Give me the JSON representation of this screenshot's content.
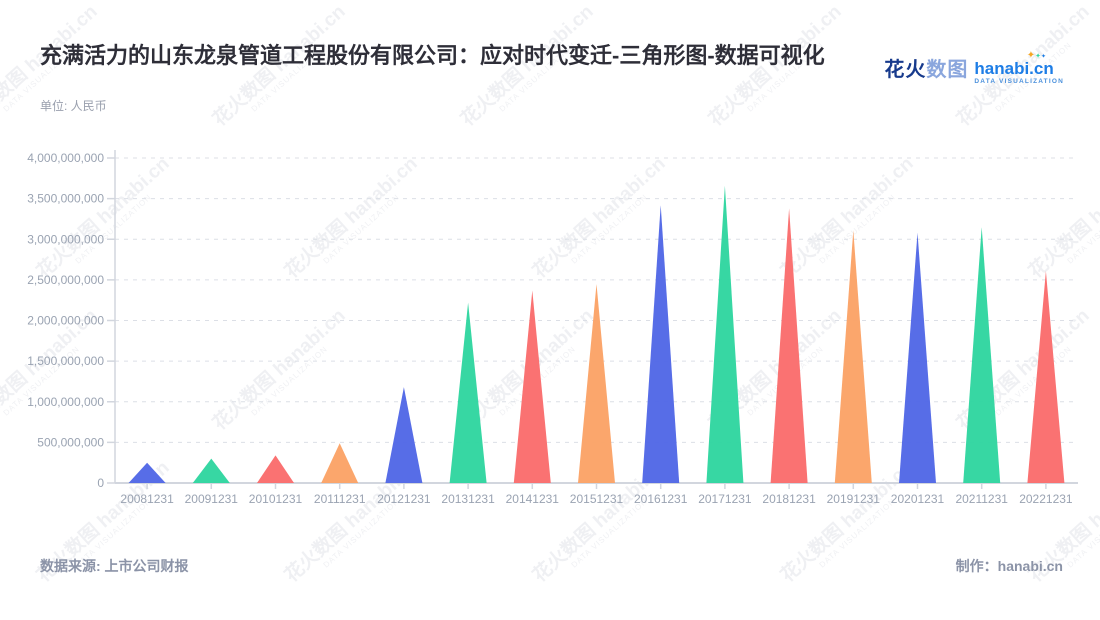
{
  "header": {
    "title": "充满活力的山东龙泉管道工程股份有限公司：应对时代变迁-三角形图-数据可视化",
    "logo": {
      "brand_cn_1": "花火",
      "brand_cn_2": "数图",
      "brand_en": "hanabi.cn",
      "tagline": "DATA VISUALIZATION"
    }
  },
  "unit_label": "单位: 人民币",
  "footer": {
    "source": "数据来源: 上市公司财报",
    "credit": "制作：hanabi.cn"
  },
  "watermark": {
    "text": "花火数图 hanabi.cn",
    "subtext": "DATA VISUALIZATION"
  },
  "colors": {
    "palette": [
      "#5268e6",
      "#31d6a0",
      "#fa6d6d",
      "#fba367"
    ],
    "axis_line": "#d2d6de",
    "grid_line": "#dcdfe6",
    "tick_label": "#9aa3b2"
  },
  "chart_data": {
    "type": "area",
    "shape": "triangle",
    "title": "充满活力的山东龙泉管道工程股份有限公司：应对时代变迁-三角形图-数据可视化",
    "xlabel": "",
    "ylabel": "单位: 人民币",
    "legend_position": "none",
    "grid": true,
    "ylim": [
      0,
      4000000000
    ],
    "ytick_step": 500000000,
    "categories": [
      "20081231",
      "20091231",
      "20101231",
      "20111231",
      "20121231",
      "20131231",
      "20141231",
      "20151231",
      "20161231",
      "20171231",
      "20181231",
      "20191231",
      "20201231",
      "20211231",
      "20221231"
    ],
    "values": [
      250000000,
      300000000,
      340000000,
      490000000,
      1180000000,
      2220000000,
      2370000000,
      2450000000,
      3420000000,
      3660000000,
      3380000000,
      3110000000,
      3080000000,
      3150000000,
      2610000000
    ]
  }
}
